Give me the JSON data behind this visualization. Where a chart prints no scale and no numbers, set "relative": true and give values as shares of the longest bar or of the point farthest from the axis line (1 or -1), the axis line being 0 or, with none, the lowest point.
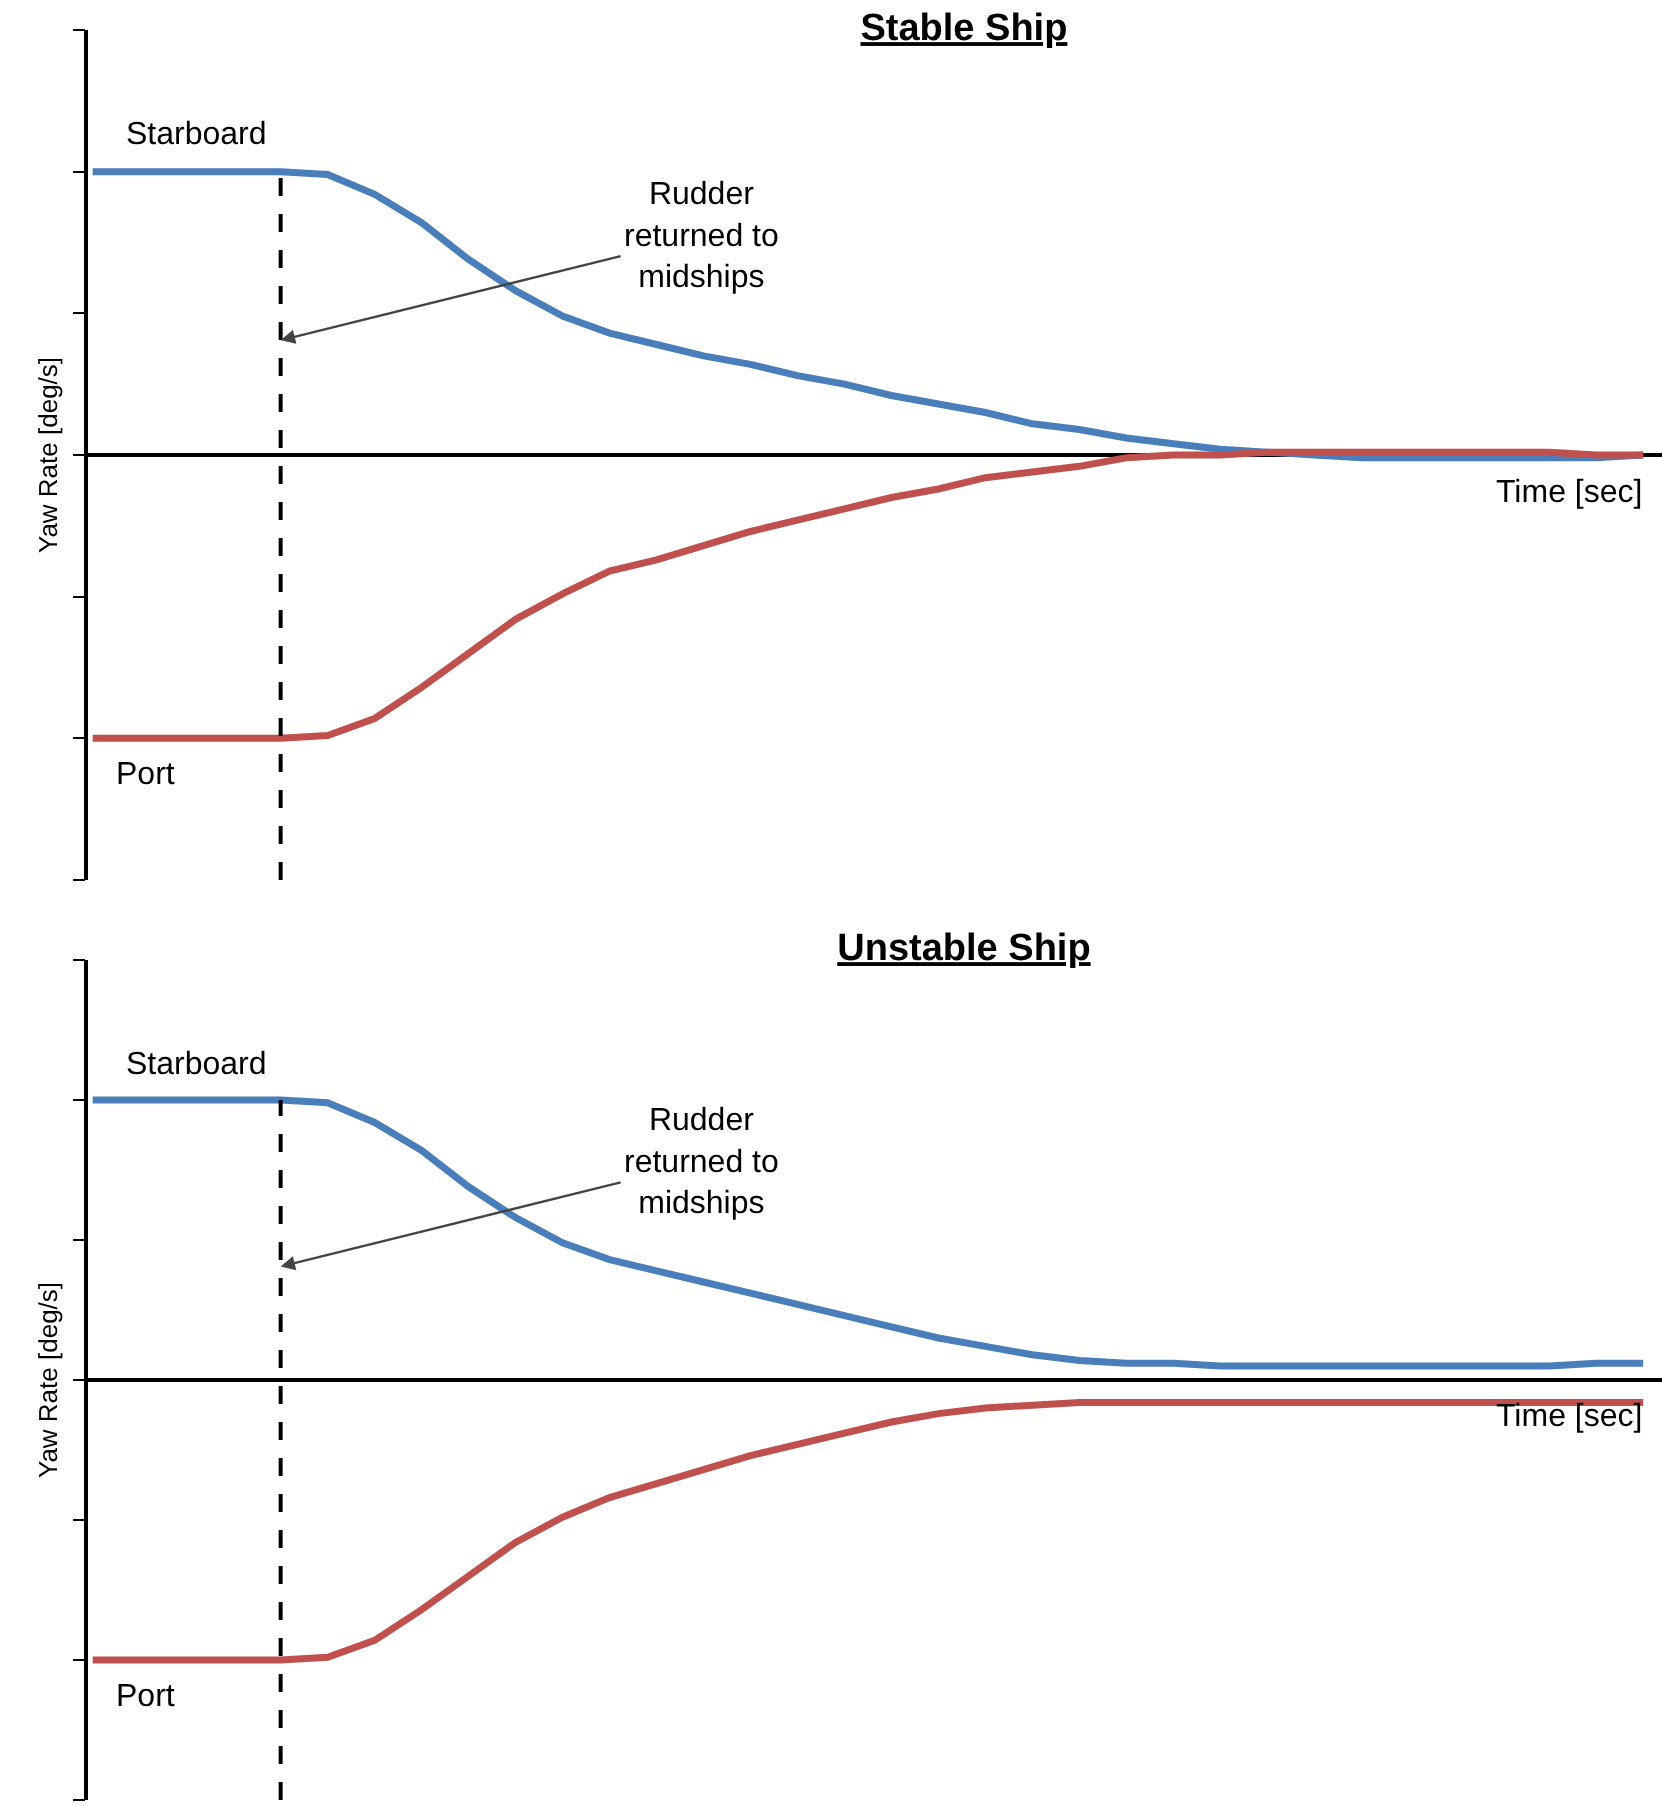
{
  "chart_data": [
    {
      "type": "line",
      "title": "Stable Ship",
      "xlabel": "Time [sec]",
      "ylabel": "Yaw Rate [deg/s]",
      "relative": true,
      "grid": false,
      "legend": false,
      "marker": "none",
      "line_style": "solid",
      "categories": [
        null,
        null,
        null,
        null,
        null,
        null,
        null,
        null,
        null,
        null,
        null,
        null,
        null,
        null,
        null,
        null,
        null,
        null,
        null,
        null,
        null,
        null,
        null,
        null,
        null,
        null,
        null,
        null,
        null,
        null,
        null,
        null,
        null,
        null
      ],
      "series": [
        {
          "name": "Starboard",
          "color": "#4a7ebb",
          "values": [
            1,
            1,
            1,
            1,
            1,
            0.99,
            0.92,
            0.82,
            0.69,
            0.58,
            0.49,
            0.43,
            0.39,
            0.35,
            0.32,
            0.28,
            0.25,
            0.21,
            0.18,
            0.15,
            0.11,
            0.09,
            0.06,
            0.04,
            0.02,
            0.01,
            0,
            -0.01,
            -0.01,
            -0.01,
            -0.01,
            -0.01,
            -0.01,
            0
          ]
        },
        {
          "name": "Port",
          "color": "#c0504d",
          "values": [
            -1,
            -1,
            -1,
            -1,
            -1,
            -0.99,
            -0.93,
            -0.82,
            -0.7,
            -0.58,
            -0.49,
            -0.41,
            -0.37,
            -0.32,
            -0.27,
            -0.23,
            -0.19,
            -0.15,
            -0.12,
            -0.08,
            -0.06,
            -0.04,
            -0.01,
            0,
            0,
            0.01,
            0.01,
            0.01,
            0.01,
            0.01,
            0.01,
            0.01,
            0,
            0
          ]
        }
      ],
      "annotations": [
        "Rudder\nreturned to\nmidships"
      ]
    },
    {
      "type": "line",
      "title": "Unstable Ship",
      "xlabel": "Time [sec]",
      "ylabel": "Yaw Rate [deg/s]",
      "relative": true,
      "grid": false,
      "legend": false,
      "marker": "none",
      "line_style": "solid",
      "categories": [
        null,
        null,
        null,
        null,
        null,
        null,
        null,
        null,
        null,
        null,
        null,
        null,
        null,
        null,
        null,
        null,
        null,
        null,
        null,
        null,
        null,
        null,
        null,
        null,
        null,
        null,
        null,
        null,
        null,
        null,
        null,
        null,
        null,
        null
      ],
      "series": [
        {
          "name": "Starboard",
          "color": "#4a7ebb",
          "values": [
            1,
            1,
            1,
            1,
            1,
            0.99,
            0.92,
            0.82,
            0.69,
            0.58,
            0.49,
            0.43,
            0.39,
            0.35,
            0.31,
            0.27,
            0.23,
            0.19,
            0.15,
            0.12,
            0.09,
            0.07,
            0.06,
            0.06,
            0.05,
            0.05,
            0.05,
            0.05,
            0.05,
            0.05,
            0.05,
            0.05,
            0.06,
            0.06
          ]
        },
        {
          "name": "Port",
          "color": "#c0504d",
          "values": [
            -1,
            -1,
            -1,
            -1,
            -1,
            -0.99,
            -0.93,
            -0.82,
            -0.7,
            -0.58,
            -0.49,
            -0.42,
            -0.37,
            -0.32,
            -0.27,
            -0.23,
            -0.19,
            -0.15,
            -0.12,
            -0.1,
            -0.09,
            -0.08,
            -0.08,
            -0.08,
            -0.08,
            -0.08,
            -0.08,
            -0.08,
            -0.08,
            -0.08,
            -0.08,
            -0.08,
            -0.08,
            -0.08
          ]
        }
      ],
      "annotations": [
        "Rudder\nreturned to\nmidships"
      ]
    }
  ]
}
